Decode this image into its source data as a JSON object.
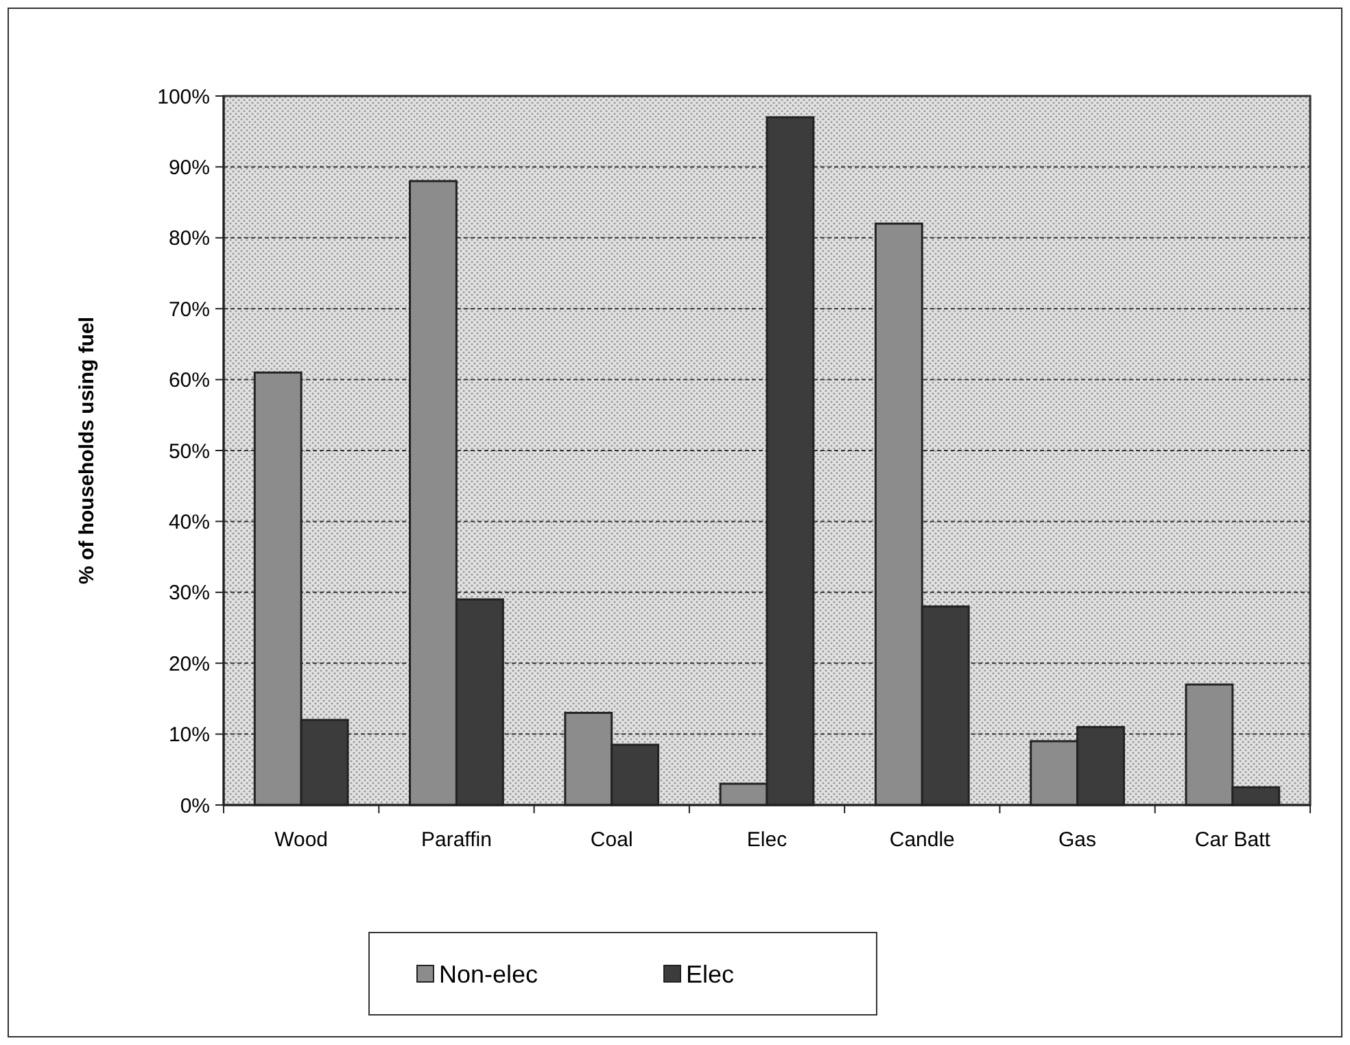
{
  "chart_data": {
    "type": "bar",
    "ylabel": "% of households using fuel",
    "categories": [
      "Wood",
      "Paraffin",
      "Coal",
      "Elec",
      "Candle",
      "Gas",
      "Car Batt"
    ],
    "series": [
      {
        "name": "Non-elec",
        "color": "#8c8c8c",
        "values": [
          61,
          88,
          13,
          3,
          82,
          9,
          17
        ]
      },
      {
        "name": "Elec",
        "color": "#3c3c3c",
        "values": [
          12,
          29,
          8.5,
          97,
          28,
          11,
          2.5
        ]
      }
    ],
    "ylim": [
      0,
      100
    ],
    "yticks": [
      {
        "value": 0,
        "label": "0%"
      },
      {
        "value": 10,
        "label": "10%"
      },
      {
        "value": 20,
        "label": "20%"
      },
      {
        "value": 30,
        "label": "30%"
      },
      {
        "value": 40,
        "label": "40%"
      },
      {
        "value": 50,
        "label": "50%"
      },
      {
        "value": 60,
        "label": "60%"
      },
      {
        "value": 70,
        "label": "70%"
      },
      {
        "value": 80,
        "label": "80%"
      },
      {
        "value": 90,
        "label": "90%"
      },
      {
        "value": 100,
        "label": "100%"
      }
    ],
    "grid": "y",
    "legend": "bottom"
  }
}
